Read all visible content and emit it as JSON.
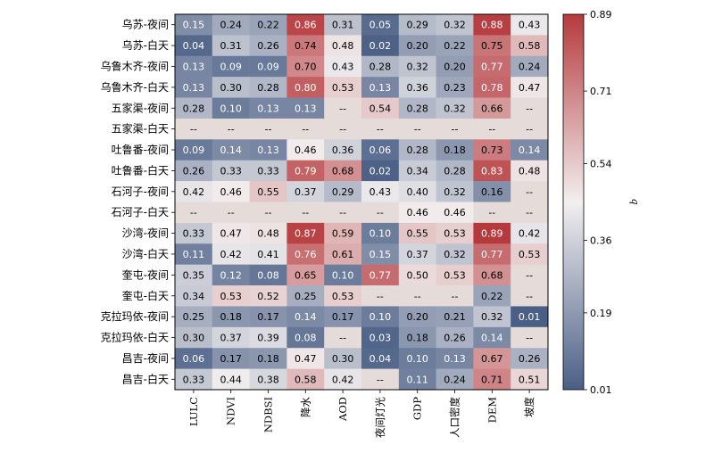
{
  "chart_data": {
    "type": "heatmap",
    "rows": [
      "乌苏-夜间",
      "乌苏-白天",
      "乌鲁木齐-夜间",
      "乌鲁木齐-白天",
      "五家渠-夜间",
      "五家渠-白天",
      "吐鲁番-夜间",
      "吐鲁番-白天",
      "石河子-夜间",
      "石河子-白天",
      "沙湾-夜间",
      "沙湾-白天",
      "奎屯-夜间",
      "奎屯-白天",
      "克拉玛依-夜间",
      "克拉玛依-白天",
      "昌吉-夜间",
      "昌吉-白天"
    ],
    "columns": [
      "LULC",
      "NDVI",
      "NDBSI",
      "降水",
      "AOD",
      "夜间灯光",
      "GDP",
      "人口密度",
      "DEM",
      "坡度"
    ],
    "values": [
      [
        "0.15",
        "0.24",
        "0.22",
        "0.86",
        "0.31",
        "0.05",
        "0.29",
        "0.32",
        "0.88",
        "0.43"
      ],
      [
        "0.04",
        "0.31",
        "0.26",
        "0.74",
        "0.48",
        "0.02",
        "0.20",
        "0.22",
        "0.75",
        "0.58"
      ],
      [
        "0.13",
        "0.09",
        "0.09",
        "0.70",
        "0.43",
        "0.28",
        "0.32",
        "0.20",
        "0.77",
        "0.24"
      ],
      [
        "0.13",
        "0.30",
        "0.28",
        "0.80",
        "0.53",
        "0.13",
        "0.36",
        "0.23",
        "0.78",
        "0.47"
      ],
      [
        "0.28",
        "0.10",
        "0.13",
        "0.13",
        "--",
        "0.54",
        "0.28",
        "0.32",
        "0.66",
        "--"
      ],
      [
        "--",
        "--",
        "--",
        "--",
        "--",
        "--",
        "--",
        "--",
        "--",
        "--"
      ],
      [
        "0.09",
        "0.14",
        "0.13",
        "0.46",
        "0.36",
        "0.06",
        "0.28",
        "0.18",
        "0.73",
        "0.14"
      ],
      [
        "0.26",
        "0.33",
        "0.33",
        "0.79",
        "0.68",
        "0.02",
        "0.34",
        "0.28",
        "0.83",
        "0.48"
      ],
      [
        "0.42",
        "0.46",
        "0.55",
        "0.37",
        "0.29",
        "0.43",
        "0.40",
        "0.32",
        "0.16",
        "--"
      ],
      [
        "--",
        "--",
        "--",
        "--",
        "--",
        "--",
        "0.46",
        "0.46",
        "--",
        "--"
      ],
      [
        "0.33",
        "0.47",
        "0.48",
        "0.87",
        "0.59",
        "0.10",
        "0.55",
        "0.53",
        "0.89",
        "0.42"
      ],
      [
        "0.11",
        "0.42",
        "0.41",
        "0.76",
        "0.61",
        "0.15",
        "0.37",
        "0.32",
        "0.77",
        "0.53"
      ],
      [
        "0.35",
        "0.12",
        "0.08",
        "0.65",
        "0.10",
        "0.77",
        "0.50",
        "0.53",
        "0.68",
        "--"
      ],
      [
        "0.34",
        "0.53",
        "0.52",
        "0.25",
        "0.53",
        "--",
        "--",
        "--",
        "0.22",
        "--"
      ],
      [
        "0.25",
        "0.18",
        "0.17",
        "0.14",
        "0.17",
        "0.10",
        "0.20",
        "0.21",
        "0.32",
        "0.01"
      ],
      [
        "0.30",
        "0.37",
        "0.39",
        "0.08",
        "--",
        "0.03",
        "0.18",
        "0.26",
        "0.14",
        "--"
      ],
      [
        "0.06",
        "0.17",
        "0.18",
        "0.47",
        "0.30",
        "0.04",
        "0.10",
        "0.13",
        "0.67",
        "0.26"
      ],
      [
        "0.33",
        "0.44",
        "0.38",
        "0.58",
        "0.42",
        "--",
        "0.11",
        "0.24",
        "0.71",
        "0.51"
      ]
    ],
    "missing_label": "--",
    "colorbar": {
      "label": "q",
      "ticks": [
        "0.89",
        "0.71",
        "0.54",
        "0.36",
        "0.19",
        "0.01"
      ],
      "range": [
        0.01,
        0.89
      ]
    },
    "colors": {
      "low": "#4a5f86",
      "mid": "#f2efef",
      "high": "#b63a3d",
      "missing": "#e5dcda"
    }
  }
}
